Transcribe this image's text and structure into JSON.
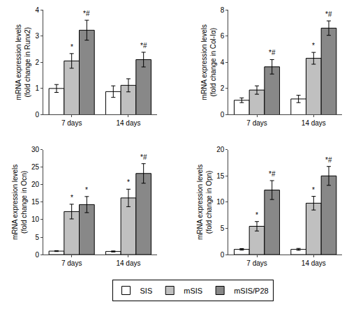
{
  "chart_data": [
    {
      "type": "bar",
      "ylabel": "mRNA expression levels\n(fold change in Runx2)",
      "categories": [
        "7 days",
        "14 days"
      ],
      "series": [
        {
          "name": "SIS",
          "color": "#ffffff",
          "values": [
            1.0,
            0.88
          ],
          "errors": [
            0.15,
            0.22
          ],
          "annotations": [
            null,
            null
          ]
        },
        {
          "name": "mSIS",
          "color": "#c0c0c0",
          "values": [
            2.05,
            1.12
          ],
          "errors": [
            0.28,
            0.25
          ],
          "annotations": [
            "*",
            null
          ]
        },
        {
          "name": "mSIS/P28",
          "color": "#888888",
          "values": [
            3.22,
            2.1
          ],
          "errors": [
            0.38,
            0.28
          ],
          "annotations": [
            "*#",
            "*#"
          ]
        }
      ],
      "ylim": [
        0,
        4
      ],
      "yticks": [
        0,
        1,
        2,
        3,
        4
      ],
      "grid": false,
      "legend": "bottom"
    },
    {
      "type": "bar",
      "ylabel": "mRNA expression levels\n(fold change in Col-Iα)",
      "categories": [
        "7 days",
        "14 days"
      ],
      "series": [
        {
          "name": "SIS",
          "color": "#ffffff",
          "values": [
            1.1,
            1.2
          ],
          "errors": [
            0.18,
            0.28
          ],
          "annotations": [
            null,
            null
          ]
        },
        {
          "name": "mSIS",
          "color": "#c0c0c0",
          "values": [
            1.88,
            4.3
          ],
          "errors": [
            0.32,
            0.45
          ],
          "annotations": [
            null,
            "*"
          ]
        },
        {
          "name": "mSIS/P28",
          "color": "#888888",
          "values": [
            3.65,
            6.6
          ],
          "errors": [
            0.55,
            0.55
          ],
          "annotations": [
            "*#",
            "*#"
          ]
        }
      ],
      "ylim": [
        0,
        8
      ],
      "yticks": [
        0,
        2,
        4,
        6,
        8
      ],
      "grid": false,
      "legend": "bottom"
    },
    {
      "type": "bar",
      "ylabel": "mRNA expression levels\n(fold change in Ocn)",
      "categories": [
        "7 days",
        "14 days"
      ],
      "series": [
        {
          "name": "SIS",
          "color": "#ffffff",
          "values": [
            1.0,
            0.9
          ],
          "errors": [
            0.12,
            0.15
          ],
          "annotations": [
            null,
            null
          ]
        },
        {
          "name": "mSIS",
          "color": "#c0c0c0",
          "values": [
            12.3,
            16.2
          ],
          "errors": [
            2.1,
            2.5
          ],
          "annotations": [
            "*",
            "*"
          ]
        },
        {
          "name": "mSIS/P28",
          "color": "#888888",
          "values": [
            14.3,
            23.2
          ],
          "errors": [
            2.3,
            2.8
          ],
          "annotations": [
            "*",
            "*#"
          ]
        }
      ],
      "ylim": [
        0,
        30
      ],
      "yticks": [
        0,
        5,
        10,
        15,
        20,
        25,
        30
      ],
      "grid": false,
      "legend": "bottom"
    },
    {
      "type": "bar",
      "ylabel": "mRNA expression levels\n(fold change in Opn)",
      "categories": [
        "7 days",
        "14 days"
      ],
      "series": [
        {
          "name": "SIS",
          "color": "#ffffff",
          "values": [
            1.0,
            1.0
          ],
          "errors": [
            0.15,
            0.18
          ],
          "annotations": [
            null,
            null
          ]
        },
        {
          "name": "mSIS",
          "color": "#c0c0c0",
          "values": [
            5.4,
            9.8
          ],
          "errors": [
            0.9,
            1.3
          ],
          "annotations": [
            "*",
            "*"
          ]
        },
        {
          "name": "mSIS/P28",
          "color": "#888888",
          "values": [
            12.3,
            15.0
          ],
          "errors": [
            1.8,
            1.8
          ],
          "annotations": [
            "*#",
            "*#"
          ]
        }
      ],
      "ylim": [
        0,
        20
      ],
      "yticks": [
        0,
        5,
        10,
        15,
        20
      ],
      "grid": false,
      "legend": "bottom"
    }
  ]
}
